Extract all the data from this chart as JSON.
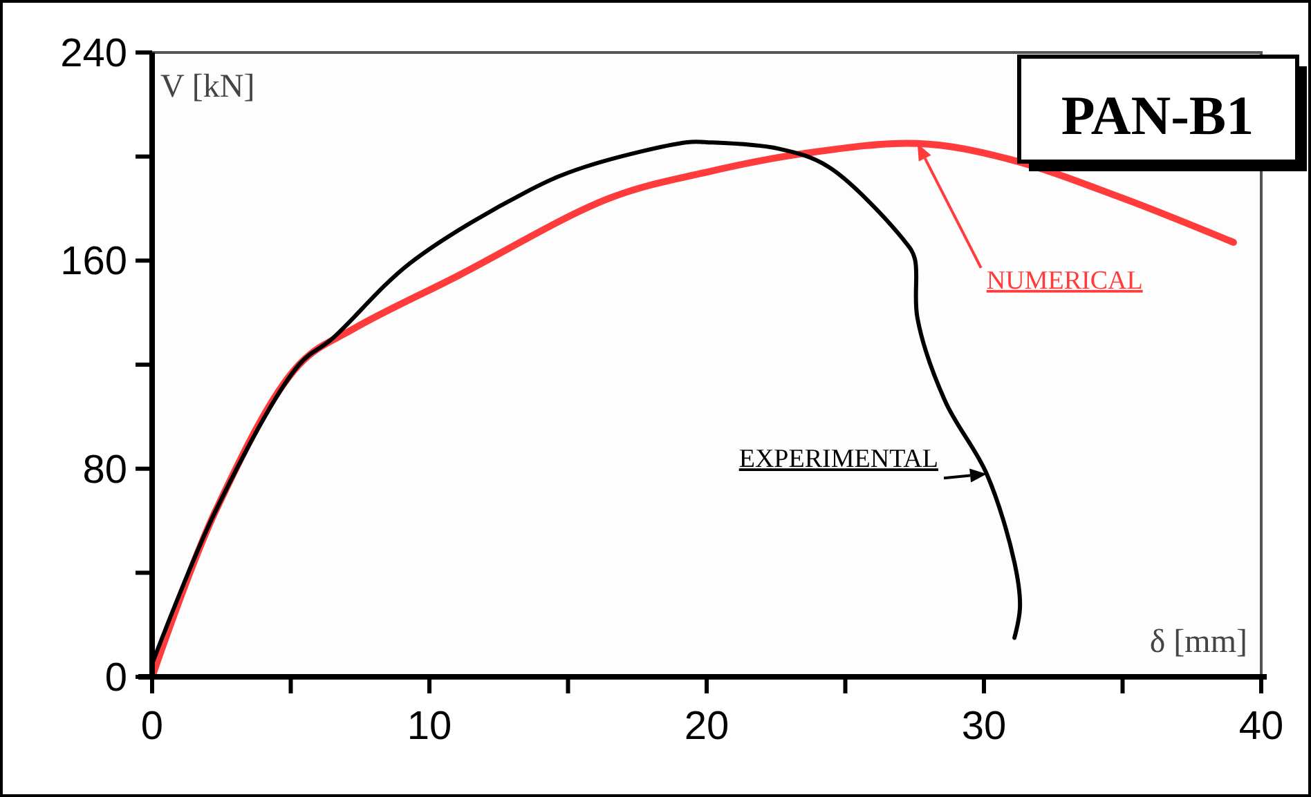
{
  "chart_data": {
    "type": "line",
    "title": "PAN-B1",
    "xlabel": "δ [mm]",
    "ylabel": "V [kN]",
    "xlim": [
      0,
      40
    ],
    "ylim": [
      0,
      240
    ],
    "xticks": [
      0,
      {
        "value": 5,
        "label": null
      },
      10,
      {
        "value": 15,
        "label": null
      },
      20,
      {
        "value": 25,
        "label": null
      },
      30,
      {
        "value": 35,
        "label": null
      },
      40
    ],
    "yticks": [
      0,
      {
        "value": 40,
        "label": null
      },
      80,
      {
        "value": 120,
        "label": null
      },
      160,
      {
        "value": 200,
        "label": null
      },
      240
    ],
    "series": [
      {
        "name": "NUMERICAL",
        "color": "#ff3b3b",
        "x": [
          0,
          2.3,
          5.3,
          7.3,
          11,
          16.5,
          20,
          23.4,
          27.6,
          30.9,
          35,
          39
        ],
        "values": [
          0,
          64,
          120,
          134,
          154,
          184,
          194,
          201,
          205,
          199,
          184,
          167
        ]
      },
      {
        "name": "EXPERIMENTAL",
        "color": "#000000",
        "x": [
          0,
          2.3,
          5.3,
          6.5,
          9.3,
          13.6,
          15.6,
          19.3,
          20,
          22.6,
          24.4,
          27.1,
          27.5,
          27.6,
          28.6,
          30.1,
          31.1,
          31.3,
          31.1
        ],
        "values": [
          5,
          64,
          120,
          130,
          159,
          187,
          196,
          205.5,
          205.5,
          203,
          196,
          168,
          161,
          138,
          106,
          78,
          44,
          27,
          15
        ]
      }
    ]
  }
}
